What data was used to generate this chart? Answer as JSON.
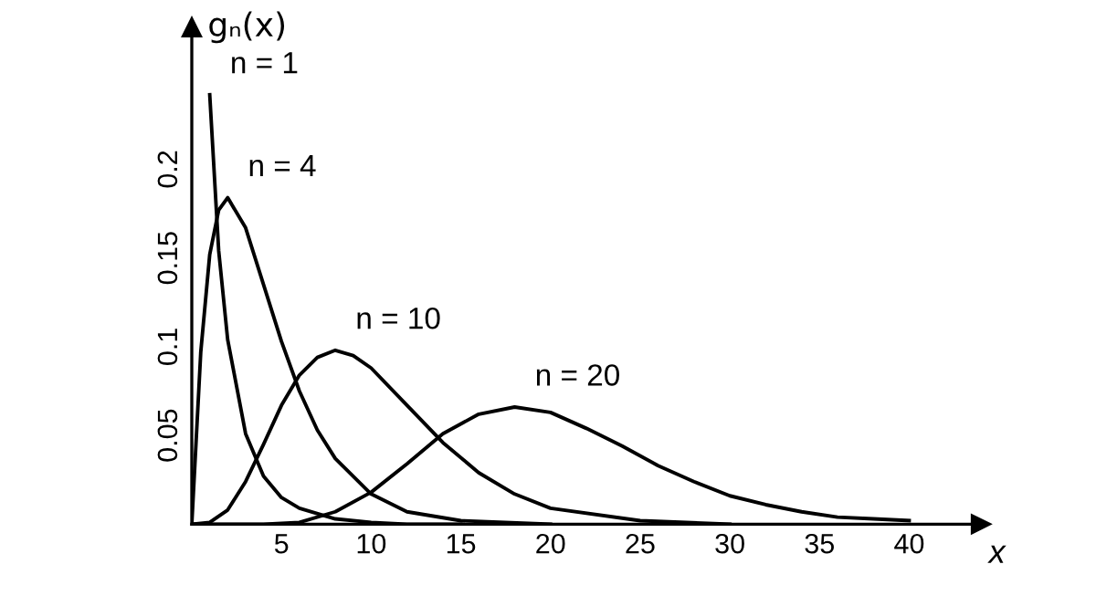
{
  "chart_data": {
    "type": "line",
    "ylabel": "gₙ(x)",
    "xlabel": "x",
    "xlim": [
      0,
      44
    ],
    "ylim": [
      0,
      0.28
    ],
    "xticks": [
      5,
      10,
      15,
      20,
      25,
      30,
      35,
      40
    ],
    "yticks": [
      0.05,
      0.1,
      0.15,
      0.2
    ],
    "grid": false,
    "marker": "none",
    "line_style": "solid",
    "series": [
      {
        "name": "n = 1",
        "color": "#000000",
        "x": [
          1,
          1.5,
          2,
          3,
          4,
          5,
          6,
          8,
          10,
          12,
          15
        ],
        "values": [
          0.242,
          0.154,
          0.104,
          0.051,
          0.027,
          0.015,
          0.009,
          0.003,
          0.001,
          0,
          0
        ]
      },
      {
        "name": "n = 4",
        "color": "#000000",
        "x": [
          0,
          0.5,
          1,
          1.5,
          2,
          3,
          4,
          5,
          6,
          7,
          8,
          10,
          12,
          15,
          20
        ],
        "values": [
          0,
          0.097,
          0.152,
          0.177,
          0.184,
          0.167,
          0.135,
          0.103,
          0.075,
          0.053,
          0.037,
          0.017,
          0.007,
          0.002,
          0
        ]
      },
      {
        "name": "n = 10",
        "color": "#000000",
        "x": [
          0,
          1,
          2,
          3,
          4,
          5,
          6,
          7,
          8,
          9,
          10,
          12,
          14,
          16,
          18,
          20,
          25,
          30
        ],
        "values": [
          0,
          0.001,
          0.008,
          0.024,
          0.045,
          0.067,
          0.084,
          0.094,
          0.098,
          0.095,
          0.088,
          0.067,
          0.046,
          0.029,
          0.017,
          0.009,
          0.002,
          0
        ]
      },
      {
        "name": "n = 20",
        "color": "#000000",
        "x": [
          0,
          4,
          6,
          8,
          10,
          12,
          14,
          16,
          18,
          20,
          22,
          24,
          26,
          28,
          30,
          32,
          34,
          36,
          38,
          40
        ],
        "values": [
          0,
          0,
          0.001,
          0.007,
          0.018,
          0.034,
          0.051,
          0.062,
          0.066,
          0.063,
          0.054,
          0.044,
          0.033,
          0.024,
          0.016,
          0.011,
          0.007,
          0.004,
          0.003,
          0.002
        ]
      }
    ]
  }
}
